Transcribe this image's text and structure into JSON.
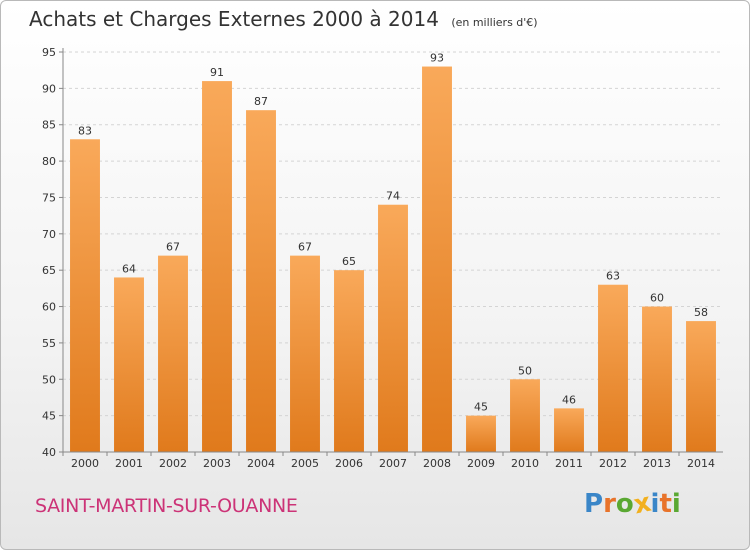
{
  "header": {
    "title": "Achats et Charges Externes 2000 à 2014",
    "subtitle": "(en milliers d'€)"
  },
  "footer": {
    "city": "SAINT-MARTIN-SUR-OUANNE",
    "brand": "Proxiti",
    "brand_letters": [
      {
        "char": "P",
        "color": "#3a86c8"
      },
      {
        "char": "r",
        "color": "#e8732a"
      },
      {
        "char": "o",
        "color": "#5aa832"
      },
      {
        "char": "x",
        "color": "#f2b01e"
      },
      {
        "char": "i",
        "color": "#3a86c8"
      },
      {
        "char": "t",
        "color": "#e8732a"
      },
      {
        "char": "i",
        "color": "#5aa832"
      }
    ]
  },
  "colors": {
    "bar_top": "#f9a95a",
    "bar_bottom": "#e07a1c",
    "grid": "#d4d4d4",
    "axis": "#888888",
    "text": "#333333"
  },
  "chart_data": {
    "type": "bar",
    "categories": [
      "2000",
      "2001",
      "2002",
      "2003",
      "2004",
      "2005",
      "2006",
      "2007",
      "2008",
      "2009",
      "2010",
      "2011",
      "2012",
      "2013",
      "2014"
    ],
    "values": [
      83,
      64,
      67,
      91,
      87,
      67,
      65,
      74,
      93,
      45,
      50,
      46,
      63,
      60,
      58
    ],
    "ylim": [
      40,
      95
    ],
    "yticks": [
      40,
      45,
      50,
      55,
      60,
      65,
      70,
      75,
      80,
      85,
      90,
      95
    ],
    "grid": true,
    "data_labels": true
  }
}
